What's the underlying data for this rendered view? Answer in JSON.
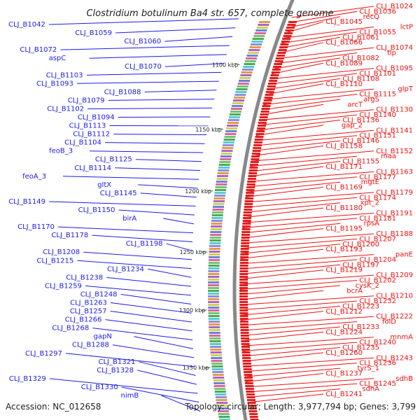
{
  "title": "Clostridium botulinum Ba4 str. 657, complete genome",
  "accession_text": "Accession: NC_012658",
  "topology_text": "Topology: circular; Length: 3,977,794 bp; Genes: 3,799",
  "colors": {
    "left_labels": "#1a1aee",
    "right_labels": "#ee1111",
    "backbone": "#888888",
    "tick_marks": "#1a8a1a"
  },
  "ticks": [
    "1100 kbp",
    "1150 kbp",
    "1200 kbp",
    "1250 kbp",
    "1300 kbp",
    "1350 kbp"
  ],
  "left_labels": [
    "CLJ_B1042",
    "CLJ_B1059",
    "CLJ_B1060",
    "CLJ_B1072",
    "aspC",
    "CLJ_B1070",
    "CLJ_B1103",
    "CLJ_B1093",
    "CLJ_B1088",
    "CLJ_B1079",
    "CLJ_B1102",
    "CLJ_B1094",
    "CLJ_B1113",
    "CLJ_B1112",
    "CLJ_B1104",
    "feoB_3",
    "CLJ_B1125",
    "CLJ_B1114",
    "feoA_3",
    "gltX",
    "CLJ_B1145",
    "CLJ_B1149",
    "CLJ_B1150",
    "birA",
    "CLJ_B1170",
    "CLJ_B1178",
    "CLJ_B1198",
    "CLJ_B1208",
    "CLJ_B1215",
    "CLJ_B1234",
    "CLJ_B1238",
    "CLJ_B1259",
    "CLJ_B1248",
    "CLJ_B1263",
    "CLJ_B1257",
    "CLJ_B1266",
    "CLJ_B1268",
    "gapN",
    "CLJ_B1288",
    "CLJ_B1297",
    "CLJ_B1321",
    "CLJ_B1328",
    "CLJ_B1329",
    "CLJ_B1330",
    "nimB"
  ],
  "right_labels": [
    "CLJ_B1024",
    "CLJ_B1036",
    "recQ",
    "CLJ_B1045",
    "lctP",
    "CLJ_B1055",
    "CLJ_B1061",
    "CLJ_B1066",
    "CLJ_B1074",
    "tlp",
    "CLJ_B1082",
    "CLJ_B1089",
    "CLJ_B1095",
    "CLJ_B1101",
    "CLJ_B1108",
    "CLJ_B1110",
    "glpT",
    "CLJ_B1115",
    "argS",
    "arcT",
    "CLJ_B1130",
    "CLJ_B1140",
    "CLJ_B1136",
    "gap_2",
    "CLJ_B1141",
    "CLJ_B1151",
    "CLJ_B1146",
    "CLJ_B1158",
    "CLJ_B1152",
    "maa",
    "CLJ_B1155",
    "CLJ_B1171",
    "CLJ_B1163",
    "CLJ_B1177",
    "mgtE",
    "CLJ_B1169",
    "CLJ_B1179",
    "CLJ_B1174",
    "xpt_2",
    "CLJ_B1180",
    "CLJ_B1191",
    "CLJ_B1181",
    "rpsA",
    "CLJ_B1195",
    "CLJ_B1188",
    "CLJ_B1207",
    "CLJ_B1200",
    "CLJ_B1193",
    "panE",
    "CLJ_B1204",
    "CLJ_B1197",
    "CLJ_B1219",
    "CLJ_B1209",
    "CLJ_B1202",
    "cysK_2",
    "bcrA",
    "CLJ_B1210",
    "CLJ_B1232",
    "CLJ_B1223",
    "CLJ_B1212",
    "CLJ_B1222",
    "folD",
    "CLJ_B1233",
    "CLJ_B1224",
    "mnmA",
    "CLJ_B1240",
    "CLJ_B1235",
    "CLJ_B1260",
    "CLJ_B1243",
    "CLJ_B1236",
    "tyrS_1",
    "CLJ_B1237",
    "sdhB",
    "CLJ_B1245",
    "sdhA",
    "CLJ_B1241"
  ]
}
